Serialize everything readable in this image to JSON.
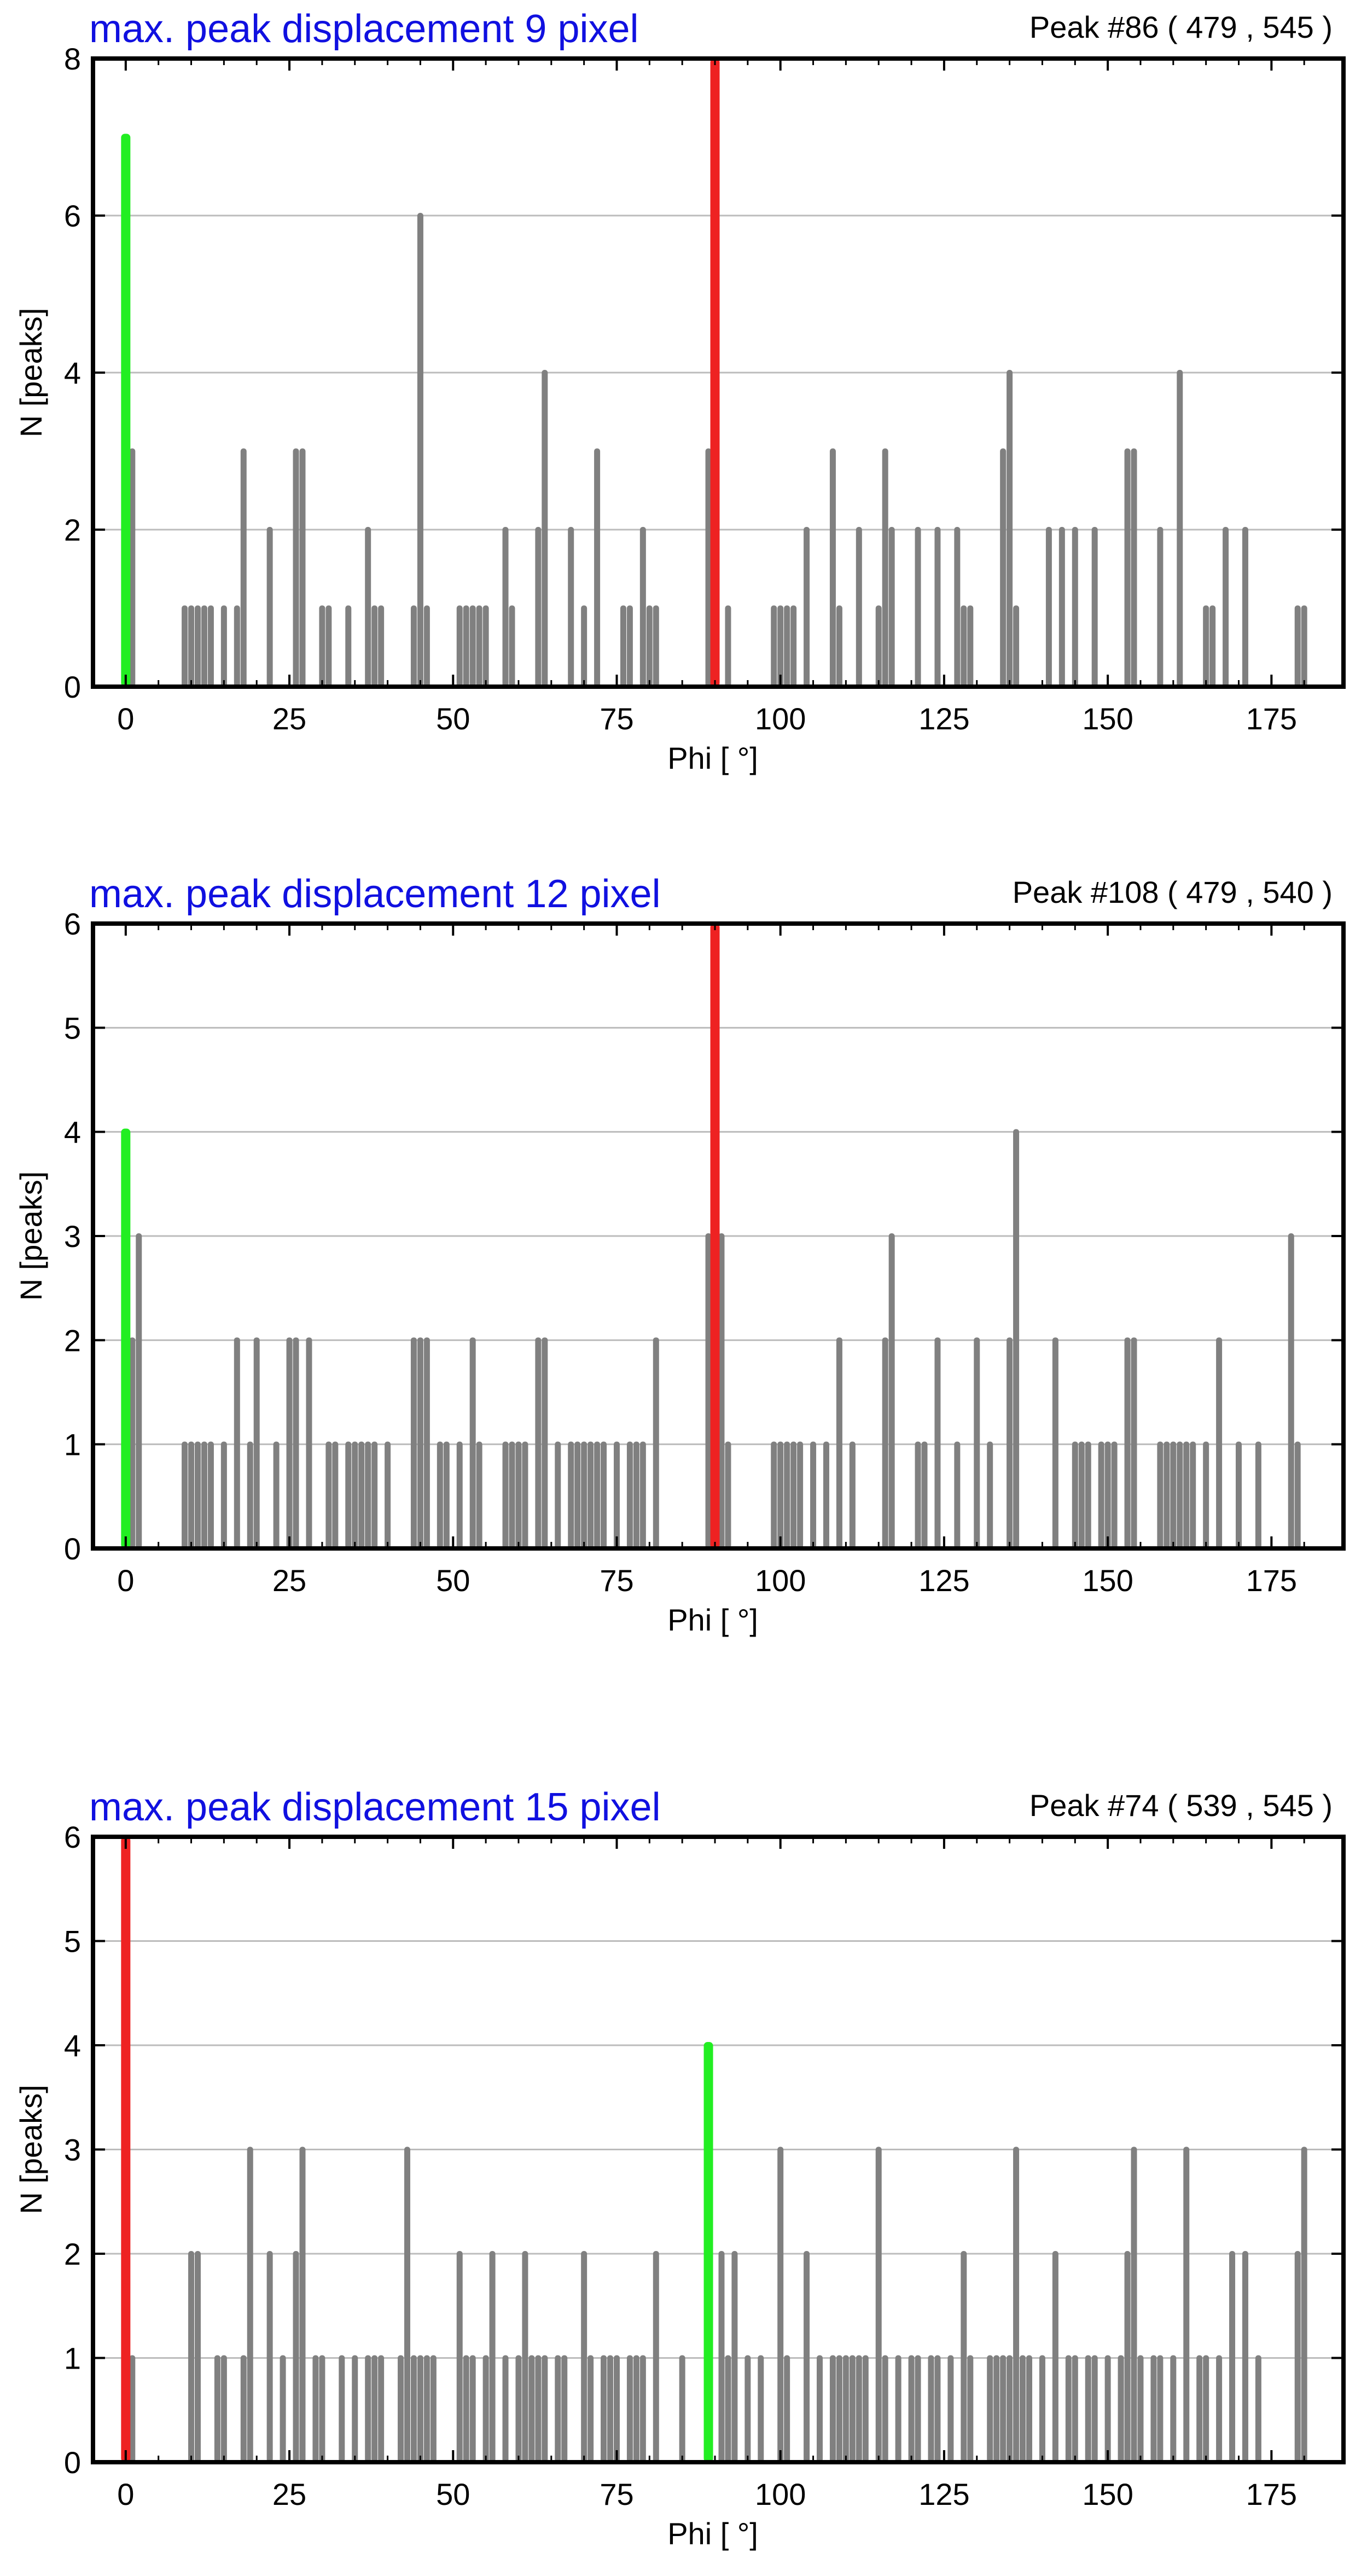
{
  "colors": {
    "bar": "#808080",
    "green": "#22ee22",
    "red": "#ee2222",
    "title": "#1010e0",
    "grid": "#bcbcbc",
    "frame": "#000000"
  },
  "chart_data": [
    {
      "type": "bar",
      "title": "max. peak displacement 9 pixel",
      "peak_label": "Peak #86  ( 479 , 545 )",
      "xlabel": "Phi [ °]",
      "ylabel": "N [peaks]",
      "xlim": [
        -5,
        186
      ],
      "ylim": [
        0,
        8
      ],
      "xticks": [
        0,
        25,
        50,
        75,
        100,
        125,
        150,
        175
      ],
      "yticks": [
        0,
        2,
        4,
        6,
        8
      ],
      "highlights": [
        {
          "color": "green",
          "x": 0,
          "value": 7
        },
        {
          "color": "red",
          "x": 90,
          "value": 8
        }
      ],
      "bars": [
        [
          1,
          3
        ],
        [
          9,
          1
        ],
        [
          10,
          1
        ],
        [
          11,
          1
        ],
        [
          12,
          1
        ],
        [
          13,
          1
        ],
        [
          15,
          1
        ],
        [
          17,
          1
        ],
        [
          18,
          3
        ],
        [
          22,
          2
        ],
        [
          26,
          3
        ],
        [
          27,
          3
        ],
        [
          30,
          1
        ],
        [
          31,
          1
        ],
        [
          34,
          1
        ],
        [
          37,
          2
        ],
        [
          38,
          1
        ],
        [
          39,
          1
        ],
        [
          44,
          1
        ],
        [
          45,
          6
        ],
        [
          46,
          1
        ],
        [
          51,
          1
        ],
        [
          52,
          1
        ],
        [
          53,
          1
        ],
        [
          54,
          1
        ],
        [
          55,
          1
        ],
        [
          58,
          2
        ],
        [
          59,
          1
        ],
        [
          63,
          2
        ],
        [
          64,
          4
        ],
        [
          68,
          2
        ],
        [
          70,
          1
        ],
        [
          72,
          3
        ],
        [
          76,
          1
        ],
        [
          77,
          1
        ],
        [
          79,
          2
        ],
        [
          80,
          1
        ],
        [
          81,
          1
        ],
        [
          89,
          3
        ],
        [
          92,
          1
        ],
        [
          99,
          1
        ],
        [
          100,
          1
        ],
        [
          101,
          1
        ],
        [
          102,
          1
        ],
        [
          104,
          2
        ],
        [
          108,
          3
        ],
        [
          109,
          1
        ],
        [
          112,
          2
        ],
        [
          115,
          1
        ],
        [
          116,
          3
        ],
        [
          117,
          2
        ],
        [
          121,
          2
        ],
        [
          124,
          2
        ],
        [
          127,
          2
        ],
        [
          128,
          1
        ],
        [
          129,
          1
        ],
        [
          134,
          3
        ],
        [
          135,
          4
        ],
        [
          136,
          1
        ],
        [
          141,
          2
        ],
        [
          143,
          2
        ],
        [
          145,
          2
        ],
        [
          148,
          2
        ],
        [
          153,
          3
        ],
        [
          154,
          3
        ],
        [
          158,
          2
        ],
        [
          161,
          4
        ],
        [
          165,
          1
        ],
        [
          166,
          1
        ],
        [
          168,
          2
        ],
        [
          171,
          2
        ],
        [
          179,
          1
        ],
        [
          180,
          1
        ]
      ]
    },
    {
      "type": "bar",
      "title": "max. peak displacement 12 pixel",
      "peak_label": "Peak #108  ( 479 , 540 )",
      "xlabel": "Phi [ °]",
      "ylabel": "N [peaks]",
      "xlim": [
        -5,
        186
      ],
      "ylim": [
        0,
        6
      ],
      "xticks": [
        0,
        25,
        50,
        75,
        100,
        125,
        150,
        175
      ],
      "yticks": [
        0,
        1,
        2,
        3,
        4,
        5,
        6
      ],
      "highlights": [
        {
          "color": "green",
          "x": 0,
          "value": 4
        },
        {
          "color": "red",
          "x": 90,
          "value": 6
        }
      ],
      "bars": [
        [
          1,
          2
        ],
        [
          2,
          3
        ],
        [
          9,
          1
        ],
        [
          10,
          1
        ],
        [
          11,
          1
        ],
        [
          12,
          1
        ],
        [
          13,
          1
        ],
        [
          15,
          1
        ],
        [
          17,
          2
        ],
        [
          19,
          1
        ],
        [
          20,
          2
        ],
        [
          23,
          1
        ],
        [
          25,
          2
        ],
        [
          26,
          2
        ],
        [
          28,
          2
        ],
        [
          31,
          1
        ],
        [
          32,
          1
        ],
        [
          34,
          1
        ],
        [
          35,
          1
        ],
        [
          36,
          1
        ],
        [
          37,
          1
        ],
        [
          38,
          1
        ],
        [
          40,
          1
        ],
        [
          44,
          2
        ],
        [
          45,
          2
        ],
        [
          46,
          2
        ],
        [
          48,
          1
        ],
        [
          49,
          1
        ],
        [
          51,
          1
        ],
        [
          53,
          2
        ],
        [
          54,
          1
        ],
        [
          58,
          1
        ],
        [
          59,
          1
        ],
        [
          60,
          1
        ],
        [
          61,
          1
        ],
        [
          63,
          2
        ],
        [
          64,
          2
        ],
        [
          66,
          1
        ],
        [
          68,
          1
        ],
        [
          69,
          1
        ],
        [
          70,
          1
        ],
        [
          71,
          1
        ],
        [
          72,
          1
        ],
        [
          73,
          1
        ],
        [
          75,
          1
        ],
        [
          77,
          1
        ],
        [
          78,
          1
        ],
        [
          79,
          1
        ],
        [
          81,
          2
        ],
        [
          89,
          3
        ],
        [
          91,
          3
        ],
        [
          92,
          1
        ],
        [
          99,
          1
        ],
        [
          100,
          1
        ],
        [
          101,
          1
        ],
        [
          102,
          1
        ],
        [
          103,
          1
        ],
        [
          105,
          1
        ],
        [
          107,
          1
        ],
        [
          109,
          2
        ],
        [
          111,
          1
        ],
        [
          116,
          2
        ],
        [
          117,
          3
        ],
        [
          121,
          1
        ],
        [
          122,
          1
        ],
        [
          124,
          2
        ],
        [
          127,
          1
        ],
        [
          130,
          2
        ],
        [
          132,
          1
        ],
        [
          135,
          2
        ],
        [
          136,
          4
        ],
        [
          142,
          2
        ],
        [
          145,
          1
        ],
        [
          146,
          1
        ],
        [
          147,
          1
        ],
        [
          149,
          1
        ],
        [
          150,
          1
        ],
        [
          151,
          1
        ],
        [
          153,
          2
        ],
        [
          154,
          2
        ],
        [
          158,
          1
        ],
        [
          159,
          1
        ],
        [
          160,
          1
        ],
        [
          161,
          1
        ],
        [
          162,
          1
        ],
        [
          163,
          1
        ],
        [
          165,
          1
        ],
        [
          167,
          2
        ],
        [
          170,
          1
        ],
        [
          173,
          1
        ],
        [
          178,
          3
        ],
        [
          179,
          1
        ]
      ]
    },
    {
      "type": "bar",
      "title": "max. peak displacement 15 pixel",
      "peak_label": "Peak #74  ( 539 , 545 )",
      "xlabel": "Phi [ °]",
      "ylabel": "N [peaks]",
      "xlim": [
        -5,
        186
      ],
      "ylim": [
        0,
        6
      ],
      "xticks": [
        0,
        25,
        50,
        75,
        100,
        125,
        150,
        175
      ],
      "yticks": [
        0,
        1,
        2,
        3,
        4,
        5,
        6
      ],
      "highlights": [
        {
          "color": "red",
          "x": 0,
          "value": 6
        },
        {
          "color": "green",
          "x": 89,
          "value": 4
        }
      ],
      "bars": [
        [
          1,
          1
        ],
        [
          10,
          2
        ],
        [
          11,
          2
        ],
        [
          14,
          1
        ],
        [
          15,
          1
        ],
        [
          18,
          1
        ],
        [
          19,
          3
        ],
        [
          22,
          2
        ],
        [
          24,
          1
        ],
        [
          26,
          2
        ],
        [
          27,
          3
        ],
        [
          29,
          1
        ],
        [
          30,
          1
        ],
        [
          33,
          1
        ],
        [
          35,
          1
        ],
        [
          37,
          1
        ],
        [
          38,
          1
        ],
        [
          39,
          1
        ],
        [
          42,
          1
        ],
        [
          43,
          3
        ],
        [
          44,
          1
        ],
        [
          45,
          1
        ],
        [
          46,
          1
        ],
        [
          47,
          1
        ],
        [
          51,
          2
        ],
        [
          52,
          1
        ],
        [
          53,
          1
        ],
        [
          55,
          1
        ],
        [
          56,
          2
        ],
        [
          58,
          1
        ],
        [
          60,
          1
        ],
        [
          61,
          2
        ],
        [
          62,
          1
        ],
        [
          63,
          1
        ],
        [
          64,
          1
        ],
        [
          66,
          1
        ],
        [
          67,
          1
        ],
        [
          70,
          2
        ],
        [
          71,
          1
        ],
        [
          73,
          1
        ],
        [
          74,
          1
        ],
        [
          75,
          1
        ],
        [
          77,
          1
        ],
        [
          78,
          1
        ],
        [
          79,
          1
        ],
        [
          81,
          2
        ],
        [
          85,
          1
        ],
        [
          91,
          2
        ],
        [
          92,
          1
        ],
        [
          93,
          2
        ],
        [
          95,
          1
        ],
        [
          97,
          1
        ],
        [
          100,
          3
        ],
        [
          101,
          1
        ],
        [
          104,
          2
        ],
        [
          106,
          1
        ],
        [
          108,
          1
        ],
        [
          109,
          1
        ],
        [
          110,
          1
        ],
        [
          111,
          1
        ],
        [
          112,
          1
        ],
        [
          113,
          1
        ],
        [
          115,
          3
        ],
        [
          116,
          1
        ],
        [
          118,
          1
        ],
        [
          120,
          1
        ],
        [
          121,
          1
        ],
        [
          123,
          1
        ],
        [
          124,
          1
        ],
        [
          126,
          1
        ],
        [
          128,
          2
        ],
        [
          129,
          1
        ],
        [
          132,
          1
        ],
        [
          133,
          1
        ],
        [
          134,
          1
        ],
        [
          135,
          1
        ],
        [
          136,
          3
        ],
        [
          137,
          1
        ],
        [
          138,
          1
        ],
        [
          140,
          1
        ],
        [
          142,
          2
        ],
        [
          144,
          1
        ],
        [
          145,
          1
        ],
        [
          147,
          1
        ],
        [
          148,
          1
        ],
        [
          150,
          1
        ],
        [
          152,
          1
        ],
        [
          153,
          2
        ],
        [
          154,
          3
        ],
        [
          155,
          1
        ],
        [
          157,
          1
        ],
        [
          158,
          1
        ],
        [
          160,
          1
        ],
        [
          162,
          3
        ],
        [
          164,
          1
        ],
        [
          165,
          1
        ],
        [
          167,
          1
        ],
        [
          169,
          2
        ],
        [
          171,
          2
        ],
        [
          173,
          1
        ],
        [
          179,
          2
        ],
        [
          180,
          3
        ]
      ]
    }
  ]
}
